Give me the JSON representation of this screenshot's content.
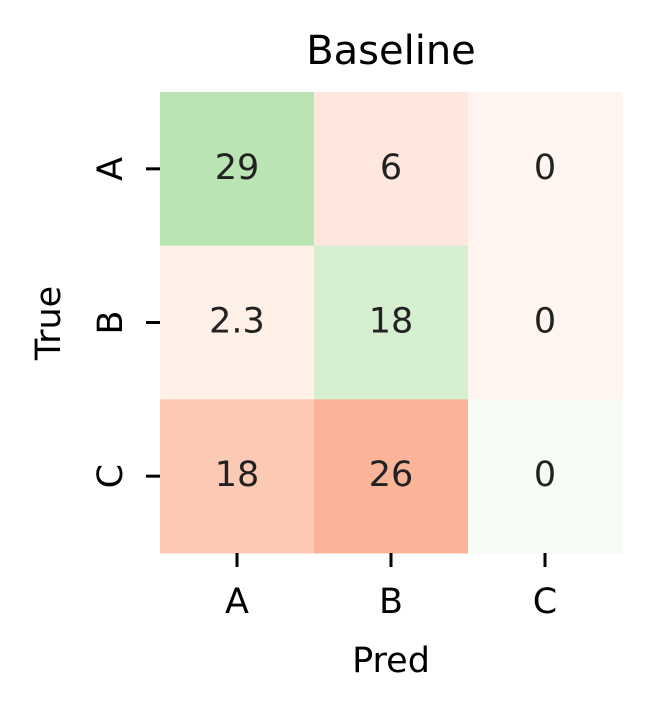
{
  "chart_data": {
    "type": "heatmap",
    "title": "Baseline",
    "x_label": "Pred",
    "y_label": "True",
    "x_categories": [
      "A",
      "B",
      "C"
    ],
    "y_categories": [
      "A",
      "B",
      "C"
    ],
    "values": [
      [
        29,
        6,
        0
      ],
      [
        2.3,
        18,
        0
      ],
      [
        18,
        26,
        0
      ]
    ],
    "colors": [
      [
        "#bae4b3",
        "#fee8de",
        "#fff4ef"
      ],
      [
        "#fff0e8",
        "#d7efd1",
        "#fff4ef"
      ],
      [
        "#fcc9b4",
        "#fcb499",
        "#f6fbf4"
      ]
    ]
  }
}
